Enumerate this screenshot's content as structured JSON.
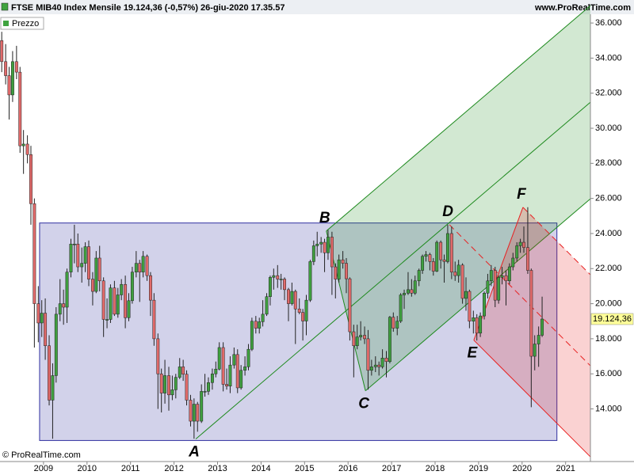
{
  "header": {
    "title": "FTSE MIB40 Index Mensile 19.124,36 (-0,57%) 26-giu-2020 17.35.57",
    "site": "www.ProRealTime.com",
    "copyright": "© ProRealTime.com"
  },
  "chart_data": {
    "type": "candlestick",
    "x": [
      2008.04,
      2008.13,
      2008.21,
      2008.29,
      2008.38,
      2008.46,
      2008.54,
      2008.63,
      2008.71,
      2008.79,
      2008.88,
      2008.96,
      2009.04,
      2009.13,
      2009.21,
      2009.29,
      2009.38,
      2009.46,
      2009.54,
      2009.63,
      2009.71,
      2009.79,
      2009.88,
      2009.96,
      2010.04,
      2010.13,
      2010.21,
      2010.29,
      2010.38,
      2010.46,
      2010.54,
      2010.63,
      2010.71,
      2010.79,
      2010.88,
      2010.96,
      2011.04,
      2011.13,
      2011.21,
      2011.29,
      2011.38,
      2011.46,
      2011.54,
      2011.63,
      2011.71,
      2011.79,
      2011.88,
      2011.96,
      2012.04,
      2012.13,
      2012.21,
      2012.29,
      2012.38,
      2012.46,
      2012.54,
      2012.63,
      2012.71,
      2012.79,
      2012.88,
      2012.96,
      2013.04,
      2013.13,
      2013.21,
      2013.29,
      2013.38,
      2013.46,
      2013.54,
      2013.63,
      2013.71,
      2013.79,
      2013.88,
      2013.96,
      2014.04,
      2014.13,
      2014.21,
      2014.29,
      2014.38,
      2014.46,
      2014.54,
      2014.63,
      2014.71,
      2014.79,
      2014.88,
      2014.96,
      2015.04,
      2015.13,
      2015.21,
      2015.29,
      2015.38,
      2015.46,
      2015.54,
      2015.63,
      2015.71,
      2015.79,
      2015.88,
      2015.96,
      2016.04,
      2016.13,
      2016.21,
      2016.29,
      2016.38,
      2016.46,
      2016.54,
      2016.63,
      2016.71,
      2016.79,
      2016.88,
      2016.96,
      2017.04,
      2017.13,
      2017.21,
      2017.29,
      2017.38,
      2017.46,
      2017.54,
      2017.63,
      2017.71,
      2017.79,
      2017.88,
      2017.96,
      2018.04,
      2018.13,
      2018.21,
      2018.29,
      2018.38,
      2018.46,
      2018.54,
      2018.63,
      2018.71,
      2018.79,
      2018.88,
      2018.96,
      2019.04,
      2019.13,
      2019.21,
      2019.29,
      2019.38,
      2019.46,
      2019.54,
      2019.63,
      2019.71,
      2019.79,
      2019.88,
      2019.96,
      2020.04,
      2020.13,
      2020.21,
      2020.29,
      2020.38,
      2020.46
    ],
    "series": [
      {
        "name": "Prezzo",
        "up_color": "#3f9f3f",
        "down_color": "#e06a6a",
        "open": [
          35000,
          33800,
          33000,
          31900,
          33800,
          33200,
          29000,
          29100,
          28500,
          25700,
          20000,
          18900,
          19460,
          17600,
          14500,
          15900,
          19400,
          20000,
          19800,
          21800,
          23400,
          23400,
          22100,
          22300,
          23250,
          21400,
          20700,
          22600,
          21300,
          19100,
          19100,
          20900,
          19400,
          20500,
          21100,
          19200,
          20170,
          21800,
          22300,
          21800,
          22700,
          21600,
          20200,
          18000,
          16000,
          14900,
          15900,
          14800,
          15090,
          15800,
          16400,
          15980,
          14500,
          13300,
          14270,
          13300,
          15000,
          15000,
          15500,
          16000,
          16270,
          17500,
          15400,
          15300,
          16500,
          17100,
          15200,
          16200,
          16400,
          17400,
          19000,
          18600,
          18970,
          19400,
          20400,
          21500,
          21600,
          21400,
          21400,
          20800,
          20000,
          20700,
          19700,
          19500,
          19010,
          20200,
          22400,
          23300,
          23400,
          23500,
          22900,
          23800,
          22100,
          21400,
          22500,
          22300,
          21420,
          18400,
          17600,
          18100,
          18200,
          18000,
          16200,
          16400,
          16500,
          16400,
          16900,
          16700,
          19230,
          18600,
          19000,
          20500,
          20600,
          20800,
          20600,
          21300,
          21900,
          22700,
          22800,
          22400,
          21850,
          23500,
          22500,
          22400,
          24000,
          21800,
          21600,
          22200,
          20300,
          20700,
          19000,
          19200,
          18320,
          19300,
          20600,
          21300,
          21900,
          20200,
          21500,
          21600,
          21300,
          22100,
          22600,
          23300,
          23500,
          23200,
          21900,
          17000,
          17700,
          18200
        ],
        "high": [
          35500,
          34800,
          33500,
          34400,
          34700,
          33500,
          29900,
          29600,
          29000,
          26000,
          21000,
          20200,
          20300,
          18200,
          16600,
          19800,
          21400,
          20800,
          22000,
          23700,
          24500,
          24000,
          23200,
          23500,
          23600,
          21800,
          23000,
          23300,
          21500,
          20300,
          21100,
          21300,
          20900,
          21400,
          21600,
          20600,
          22100,
          23000,
          22500,
          23000,
          22800,
          21800,
          20600,
          18300,
          16300,
          16800,
          16400,
          15900,
          16000,
          16900,
          16800,
          16200,
          14800,
          14600,
          14400,
          15400,
          16000,
          15800,
          16300,
          16700,
          17800,
          17800,
          16300,
          17000,
          17500,
          17400,
          16500,
          17000,
          17700,
          19200,
          19300,
          19200,
          20200,
          20600,
          21600,
          22000,
          22200,
          21700,
          21500,
          20900,
          21200,
          20800,
          20300,
          19700,
          20500,
          22500,
          23600,
          24100,
          23800,
          23700,
          24200,
          24100,
          22300,
          22800,
          23000,
          22600,
          21500,
          18800,
          18800,
          19000,
          18700,
          18500,
          16800,
          17000,
          16700,
          17400,
          17300,
          19300,
          19500,
          19300,
          20600,
          20800,
          21800,
          21400,
          21600,
          22000,
          22800,
          23000,
          22900,
          22600,
          23600,
          23600,
          22800,
          24500,
          24400,
          22400,
          22500,
          22300,
          21500,
          20800,
          19600,
          19400,
          19500,
          20700,
          21700,
          22200,
          22100,
          21600,
          22100,
          21900,
          22300,
          22900,
          23500,
          23700,
          24400,
          25500,
          22000,
          18200,
          18700,
          20400
        ],
        "low": [
          33200,
          32500,
          30500,
          31500,
          32800,
          28600,
          27400,
          28000,
          24500,
          17500,
          17800,
          18100,
          16800,
          14200,
          12300,
          15500,
          19000,
          18800,
          18900,
          21500,
          22300,
          21800,
          21200,
          21800,
          21000,
          19900,
          20600,
          20700,
          18100,
          18600,
          18900,
          19300,
          19200,
          20200,
          18600,
          19000,
          20000,
          21500,
          20100,
          21500,
          21300,
          19300,
          17600,
          14000,
          13800,
          14300,
          13900,
          14500,
          14600,
          15700,
          15600,
          14200,
          13000,
          12300,
          12700,
          13200,
          14700,
          14800,
          15100,
          15800,
          16200,
          15000,
          15100,
          14900,
          16300,
          14900,
          15100,
          15900,
          16200,
          17300,
          18300,
          18300,
          18700,
          19300,
          19900,
          20800,
          20900,
          20800,
          20200,
          19000,
          19900,
          17700,
          19400,
          17900,
          18200,
          20100,
          22200,
          22700,
          22900,
          21800,
          22500,
          20500,
          20300,
          21200,
          22000,
          20600,
          17900,
          15800,
          17400,
          17900,
          17700,
          15100,
          15900,
          16100,
          15900,
          16300,
          15800,
          16600,
          18400,
          18200,
          18900,
          19700,
          20500,
          20400,
          20500,
          21000,
          21700,
          22400,
          21900,
          21600,
          21800,
          22000,
          21200,
          22300,
          21400,
          21300,
          21200,
          20000,
          19600,
          18600,
          18300,
          17900,
          18100,
          19100,
          20300,
          21000,
          19800,
          20000,
          21100,
          19900,
          21100,
          21900,
          22400,
          22900,
          22900,
          21700,
          14100,
          16200,
          16400,
          18100
        ],
        "close": [
          33800,
          33000,
          31900,
          33800,
          33200,
          29000,
          29100,
          28500,
          25700,
          20000,
          18900,
          19460,
          17600,
          14500,
          15900,
          19400,
          20000,
          19800,
          21800,
          23400,
          23400,
          22100,
          22300,
          23250,
          21400,
          20700,
          22600,
          21300,
          19100,
          19100,
          20900,
          19400,
          20500,
          21100,
          19200,
          20170,
          21800,
          22300,
          21800,
          22700,
          21600,
          20200,
          18000,
          16000,
          14900,
          15900,
          14800,
          15090,
          15800,
          16400,
          15980,
          14500,
          13300,
          14270,
          13300,
          15000,
          15000,
          15500,
          16000,
          16270,
          17500,
          15400,
          15300,
          16500,
          17100,
          15200,
          16200,
          16400,
          17400,
          19000,
          18600,
          18970,
          19400,
          20400,
          21500,
          21600,
          21400,
          21400,
          20800,
          20000,
          20700,
          19700,
          19500,
          19010,
          20200,
          22400,
          23300,
          23400,
          23500,
          22900,
          23800,
          22100,
          21400,
          22500,
          22300,
          21420,
          18400,
          17600,
          18100,
          18200,
          18000,
          16200,
          16400,
          16500,
          16400,
          16900,
          16700,
          19230,
          18600,
          19000,
          20500,
          20600,
          20800,
          20600,
          21300,
          21900,
          22700,
          22800,
          22400,
          21850,
          23500,
          22500,
          22400,
          24000,
          21800,
          21600,
          22200,
          20300,
          20700,
          19000,
          19200,
          18320,
          19300,
          20600,
          21300,
          21900,
          20200,
          21500,
          21600,
          21300,
          22100,
          22600,
          23300,
          23500,
          23200,
          21900,
          17000,
          17700,
          18200,
          19124.36
        ],
        "last_label": "19.124,36"
      }
    ],
    "xlim": [
      2008.0,
      2021.57
    ],
    "xticks": [
      2009,
      2010,
      2011,
      2012,
      2013,
      2014,
      2015,
      2016,
      2017,
      2018,
      2019,
      2020,
      2021
    ],
    "ylim": [
      11000,
      36500
    ],
    "yticks": [
      {
        "value": 14000,
        "label": "14.000"
      },
      {
        "value": 16000,
        "label": "16.000"
      },
      {
        "value": 18000,
        "label": "18.000"
      },
      {
        "value": 20000,
        "label": "20.000"
      },
      {
        "value": 22000,
        "label": "22.000"
      },
      {
        "value": 24000,
        "label": "24.000"
      },
      {
        "value": 26000,
        "label": "26.000"
      },
      {
        "value": 28000,
        "label": "28.000"
      },
      {
        "value": 30000,
        "label": "30.000"
      },
      {
        "value": 32000,
        "label": "32.000"
      },
      {
        "value": 34000,
        "label": "34.000"
      },
      {
        "value": 36000,
        "label": "36.000"
      }
    ],
    "box": {
      "x": [
        2008.91,
        2020.8
      ],
      "y": [
        12200,
        24600
      ],
      "color": "#3030a0"
    },
    "pitchforks": [
      {
        "color": "#1e8a1e",
        "dashed": false,
        "points": [
          {
            "label": "A",
            "x": 2012.5,
            "y": 12285
          },
          {
            "label": "B",
            "x": 2015.5,
            "y": 24142
          },
          {
            "label": "C",
            "x": 2016.4,
            "y": 15035
          }
        ]
      },
      {
        "color": "#e82020",
        "dashed": true,
        "points": [
          {
            "label": "D",
            "x": 2018.33,
            "y": 24500
          },
          {
            "label": "E",
            "x": 2018.89,
            "y": 17920
          },
          {
            "label": "F",
            "x": 2020.02,
            "y": 25495
          }
        ]
      }
    ]
  }
}
